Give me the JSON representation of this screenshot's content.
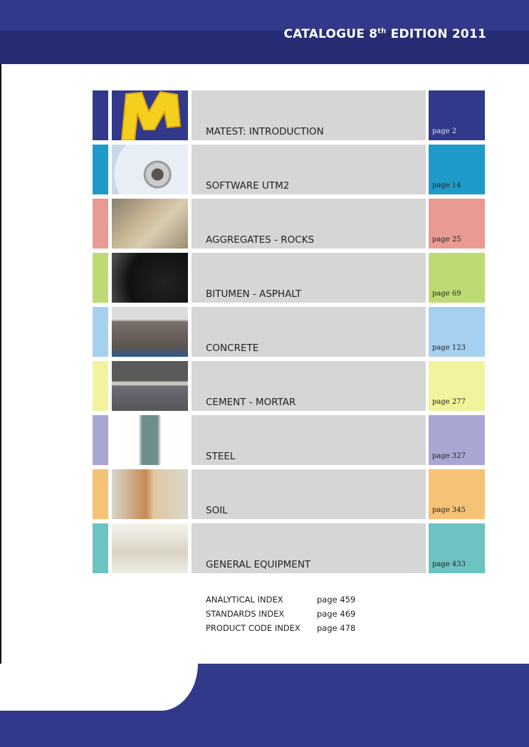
{
  "header": {
    "title_prefix": "CATALOGUE 8",
    "title_sup": "th",
    "title_suffix": " EDITION 2011",
    "colors": {
      "top": "#32398a",
      "band": "#272c74"
    }
  },
  "sections": [
    {
      "label": "MATEST: INTRODUCTION",
      "page": "page 2",
      "color": "#32398a",
      "image": "yellow-m-logo"
    },
    {
      "label": "SOFTWARE UTM2",
      "page": "page 14",
      "color": "#1e9bc8",
      "image": "cd-disc"
    },
    {
      "label": "AGGREGATES - ROCKS",
      "page": "page 25",
      "color": "#e99a93",
      "image": "rocks"
    },
    {
      "label": "BITUMEN - ASPHALT",
      "page": "page 69",
      "color": "#bddb74",
      "image": "asphalt"
    },
    {
      "label": "CONCRETE",
      "page": "page 123",
      "color": "#a6d0f0",
      "image": "concrete-specimen"
    },
    {
      "label": "CEMENT - MORTAR",
      "page": "page 277",
      "color": "#f3f39d",
      "image": "cement-mould"
    },
    {
      "label": "STEEL",
      "page": "page 327",
      "color": "#aaa6d4",
      "image": "steel-tester"
    },
    {
      "label": "SOIL",
      "page": "page 345",
      "color": "#f6c275",
      "image": "soil-cell"
    },
    {
      "label": "GENERAL EQUIPMENT",
      "page": "page 433",
      "color": "#6cc3c2",
      "image": "balances"
    }
  ],
  "indexes": [
    {
      "label": "ANALYTICAL INDEX",
      "page": "page 459"
    },
    {
      "label": "STANDARDS INDEX",
      "page": "page 469"
    },
    {
      "label": "PRODUCT CODE INDEX",
      "page": "page 478"
    }
  ]
}
